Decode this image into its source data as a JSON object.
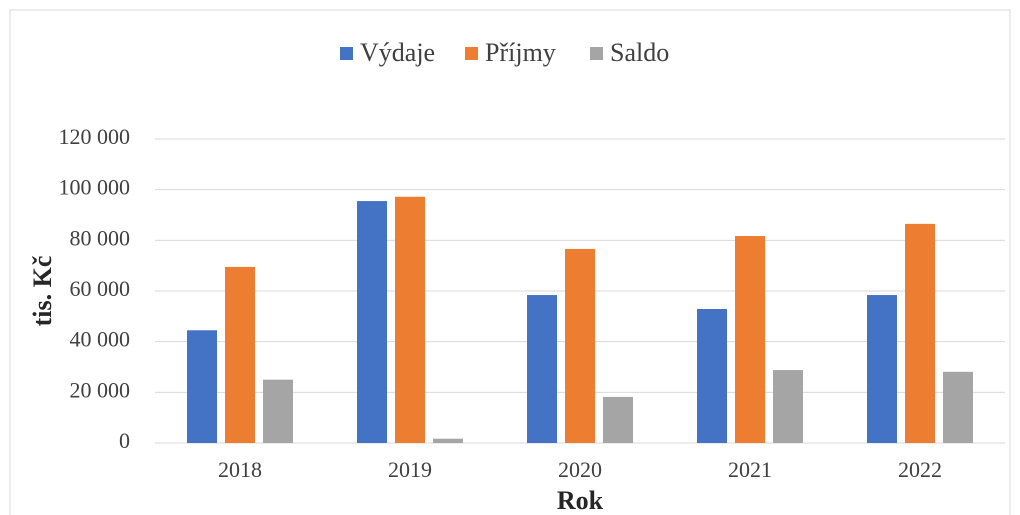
{
  "chart_data": {
    "type": "bar",
    "x_label": "Rok",
    "y_label": "tis. Kč",
    "categories": [
      "2018",
      "2019",
      "2020",
      "2021",
      "2022"
    ],
    "series": [
      {
        "name": "Výdaje",
        "color": "#4472c4",
        "values": [
          44500,
          95500,
          58400,
          52900,
          58400
        ]
      },
      {
        "name": "Příjmy",
        "color": "#ed7d31",
        "values": [
          69500,
          97200,
          76600,
          81700,
          86500
        ]
      },
      {
        "name": "Saldo",
        "color": "#a5a5a5",
        "values": [
          25000,
          1700,
          18200,
          28800,
          28100
        ]
      }
    ],
    "ylim": [
      0,
      120000
    ],
    "yticks": [
      0,
      {
        "value": 20000,
        "label": "20 000"
      },
      {
        "value": 40000,
        "label": "40 000"
      },
      {
        "value": 60000,
        "label": "60 000"
      },
      {
        "value": 80000,
        "label": "80 000"
      },
      {
        "value": 100000,
        "label": "100 000"
      },
      {
        "value": 120000,
        "label": "120 000"
      }
    ],
    "grid": true,
    "legend": "top"
  }
}
